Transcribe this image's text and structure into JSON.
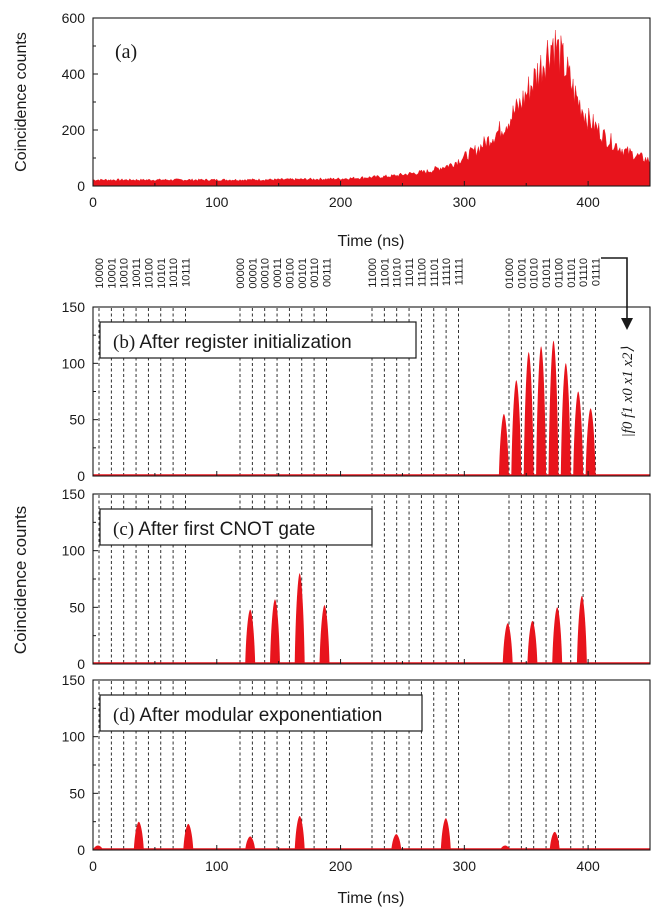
{
  "chart_data": [
    {
      "type": "area",
      "id": "a",
      "panel_label": "(a)",
      "xlabel": "Time (ns)",
      "ylabel": "Coincidence counts",
      "xlim": [
        0,
        450
      ],
      "ylim": [
        0,
        600
      ],
      "xticks": [
        0,
        100,
        200,
        300,
        400
      ],
      "yticks": [
        0,
        200,
        400,
        600
      ],
      "color": "#e8141c",
      "envelope": {
        "x": [
          0,
          50,
          100,
          150,
          200,
          240,
          270,
          290,
          310,
          330,
          345,
          355,
          362,
          368,
          372,
          376,
          382,
          390,
          400,
          415,
          430,
          450
        ],
        "y": [
          22,
          22,
          22,
          23,
          26,
          35,
          52,
          78,
          130,
          205,
          290,
          370,
          430,
          490,
          520,
          480,
          420,
          320,
          240,
          170,
          125,
          90
        ]
      }
    },
    {
      "type": "bar",
      "id": "b",
      "panel_label": "(b) After register initialization",
      "xlabel": "",
      "ylabel": "Coincidence counts",
      "xlim": [
        0,
        450
      ],
      "ylim": [
        0,
        150
      ],
      "xticks": [
        0,
        100,
        200,
        300,
        400
      ],
      "yticks": [
        0,
        50,
        100,
        150
      ],
      "color": "#e8141c",
      "state_label": "|f0 f1 x0 x1 x2⟩",
      "bins": {
        "x": [
          332,
          342,
          352,
          362,
          372,
          382,
          392,
          402
        ],
        "y": [
          55,
          85,
          110,
          115,
          120,
          100,
          75,
          60
        ]
      }
    },
    {
      "type": "bar",
      "id": "c",
      "panel_label": "(c) After first CNOT gate",
      "xlabel": "",
      "ylabel": "Coincidence counts",
      "xlim": [
        0,
        450
      ],
      "ylim": [
        0,
        150
      ],
      "xticks": [
        0,
        100,
        200,
        300,
        400
      ],
      "yticks": [
        0,
        50,
        100,
        150
      ],
      "color": "#e8141c",
      "bins": {
        "x": [
          127,
          147,
          167,
          187,
          335,
          355,
          375,
          395
        ],
        "y": [
          48,
          57,
          80,
          52,
          36,
          38,
          50,
          60
        ]
      }
    },
    {
      "type": "bar",
      "id": "d",
      "panel_label": "(d) After modular exponentiation",
      "xlabel": "Time (ns)",
      "ylabel": "Coincidence counts",
      "xlim": [
        0,
        450
      ],
      "ylim": [
        0,
        150
      ],
      "xticks": [
        0,
        100,
        200,
        300,
        400
      ],
      "yticks": [
        0,
        50,
        100,
        150
      ],
      "color": "#e8141c",
      "bins": {
        "x": [
          4,
          37,
          77,
          127,
          167,
          245,
          285,
          333,
          373
        ],
        "y": [
          4,
          25,
          23,
          12,
          30,
          14,
          28,
          4,
          16
        ]
      }
    }
  ],
  "bin_groups": [
    {
      "labels": [
        "10000",
        "10001",
        "10010",
        "10011",
        "10100",
        "10101",
        "10110",
        "10111"
      ]
    },
    {
      "labels": [
        "00000",
        "00001",
        "00010",
        "00011",
        "00100",
        "00101",
        "00110",
        "00111"
      ]
    },
    {
      "labels": [
        "11000",
        "11001",
        "11010",
        "11011",
        "11100",
        "11101",
        "11110",
        "11111"
      ]
    },
    {
      "labels": [
        "01000",
        "01001",
        "01010",
        "01011",
        "01100",
        "01101",
        "01110",
        "01111"
      ]
    }
  ],
  "shared_ylabel": "Coincidence counts"
}
